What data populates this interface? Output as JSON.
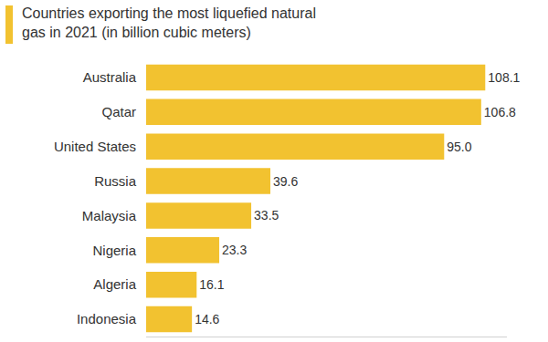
{
  "chart_data": {
    "type": "bar",
    "orientation": "horizontal",
    "title": "Countries exporting the most liquefied natural gas in 2021 (in billion cubic meters)",
    "categories": [
      "Australia",
      "Qatar",
      "United States",
      "Russia",
      "Malaysia",
      "Nigeria",
      "Algeria",
      "Indonesia"
    ],
    "values": [
      108.1,
      106.8,
      95.0,
      39.6,
      33.5,
      23.3,
      16.1,
      14.6
    ],
    "value_labels": [
      "108.1",
      "106.8",
      "95.0",
      "39.6",
      "33.5",
      "23.3",
      "16.1",
      "14.6"
    ],
    "color": "#f2c230",
    "xlim": [
      0,
      115
    ],
    "xticks": [],
    "grid": false,
    "data_labels": true,
    "tick_labels": "y"
  }
}
